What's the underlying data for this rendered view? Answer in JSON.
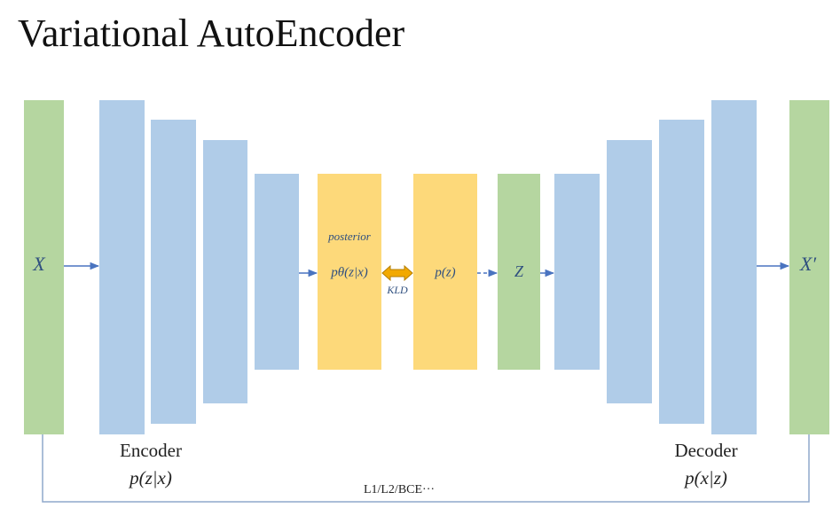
{
  "header": {
    "title": "Variational AutoEncoder"
  },
  "nodes": [
    {
      "label": "X"
    },
    {
      "label": "posterior"
    },
    {
      "label": "pθ(z|x)"
    },
    {
      "label": "KLD"
    },
    {
      "label": "p(z)"
    },
    {
      "label": "Z"
    },
    {
      "label": "X′"
    }
  ],
  "encoder": {
    "label": "Encoder",
    "formula": "p(z|x)"
  },
  "decoder": {
    "label": "Decoder",
    "formula": "p(x|z)"
  },
  "loss": {
    "label": "L1/L2/BCE···"
  }
}
